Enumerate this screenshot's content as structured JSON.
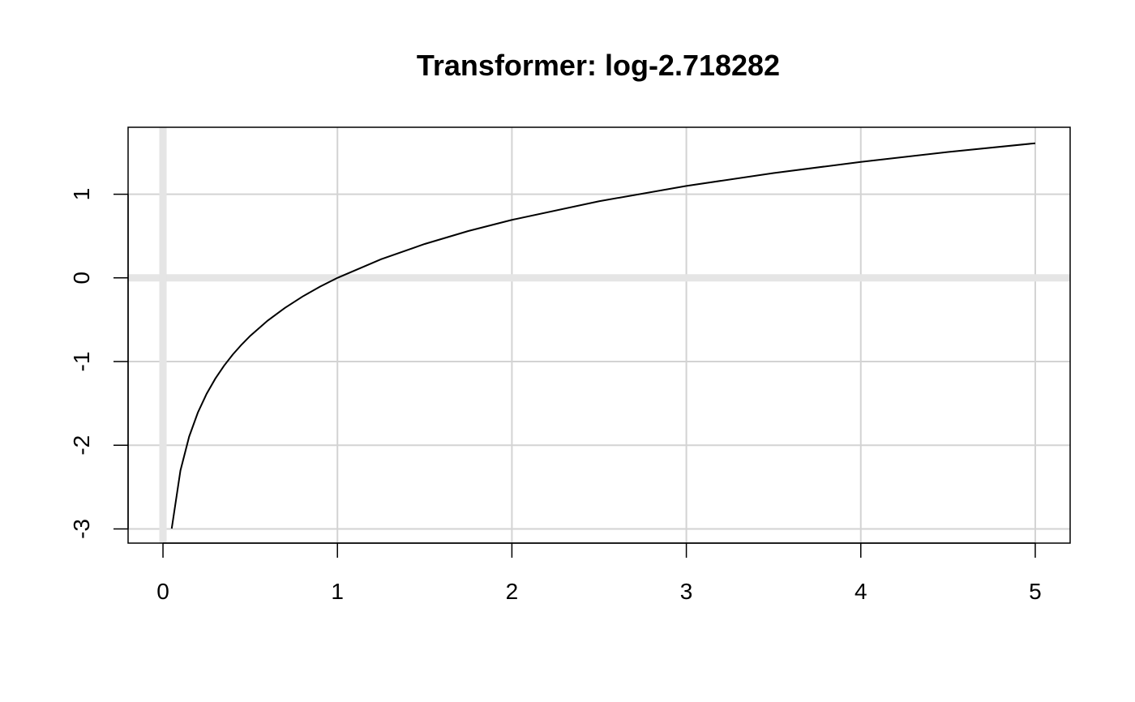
{
  "chart_data": {
    "type": "line",
    "title": "Transformer: log-2.718282",
    "xlabel": "",
    "ylabel": "",
    "xlim": [
      -0.2,
      5.2
    ],
    "ylim": [
      -3.17,
      1.8
    ],
    "xticks": [
      0,
      1,
      2,
      3,
      4,
      5
    ],
    "yticks": [
      -3,
      -2,
      -1,
      0,
      1
    ],
    "xtick_labels": [
      "0",
      "1",
      "2",
      "3",
      "4",
      "5"
    ],
    "ytick_labels": [
      "-3",
      "-2",
      "-1",
      "0",
      "1"
    ],
    "grid": true,
    "reference_lines": {
      "x": 0,
      "y": 0
    },
    "series": [
      {
        "x": [
          0.05,
          0.1,
          0.15,
          0.2,
          0.25,
          0.3,
          0.35,
          0.4,
          0.45,
          0.5,
          0.6,
          0.7,
          0.8,
          0.9,
          1.0,
          1.25,
          1.5,
          1.75,
          2.0,
          2.5,
          3.0,
          3.5,
          4.0,
          4.5,
          5.0
        ],
        "y": [
          -2.996,
          -2.303,
          -1.897,
          -1.609,
          -1.386,
          -1.204,
          -1.05,
          -0.916,
          -0.799,
          -0.693,
          -0.511,
          -0.357,
          -0.223,
          -0.105,
          0.0,
          0.223,
          0.405,
          0.56,
          0.693,
          0.916,
          1.099,
          1.253,
          1.386,
          1.504,
          1.609
        ],
        "color": "#000000"
      }
    ],
    "colors": {
      "grid": "#d3d3d3",
      "reference_line": "#e5e5e5",
      "frame": "#000000",
      "line": "#000000"
    }
  }
}
